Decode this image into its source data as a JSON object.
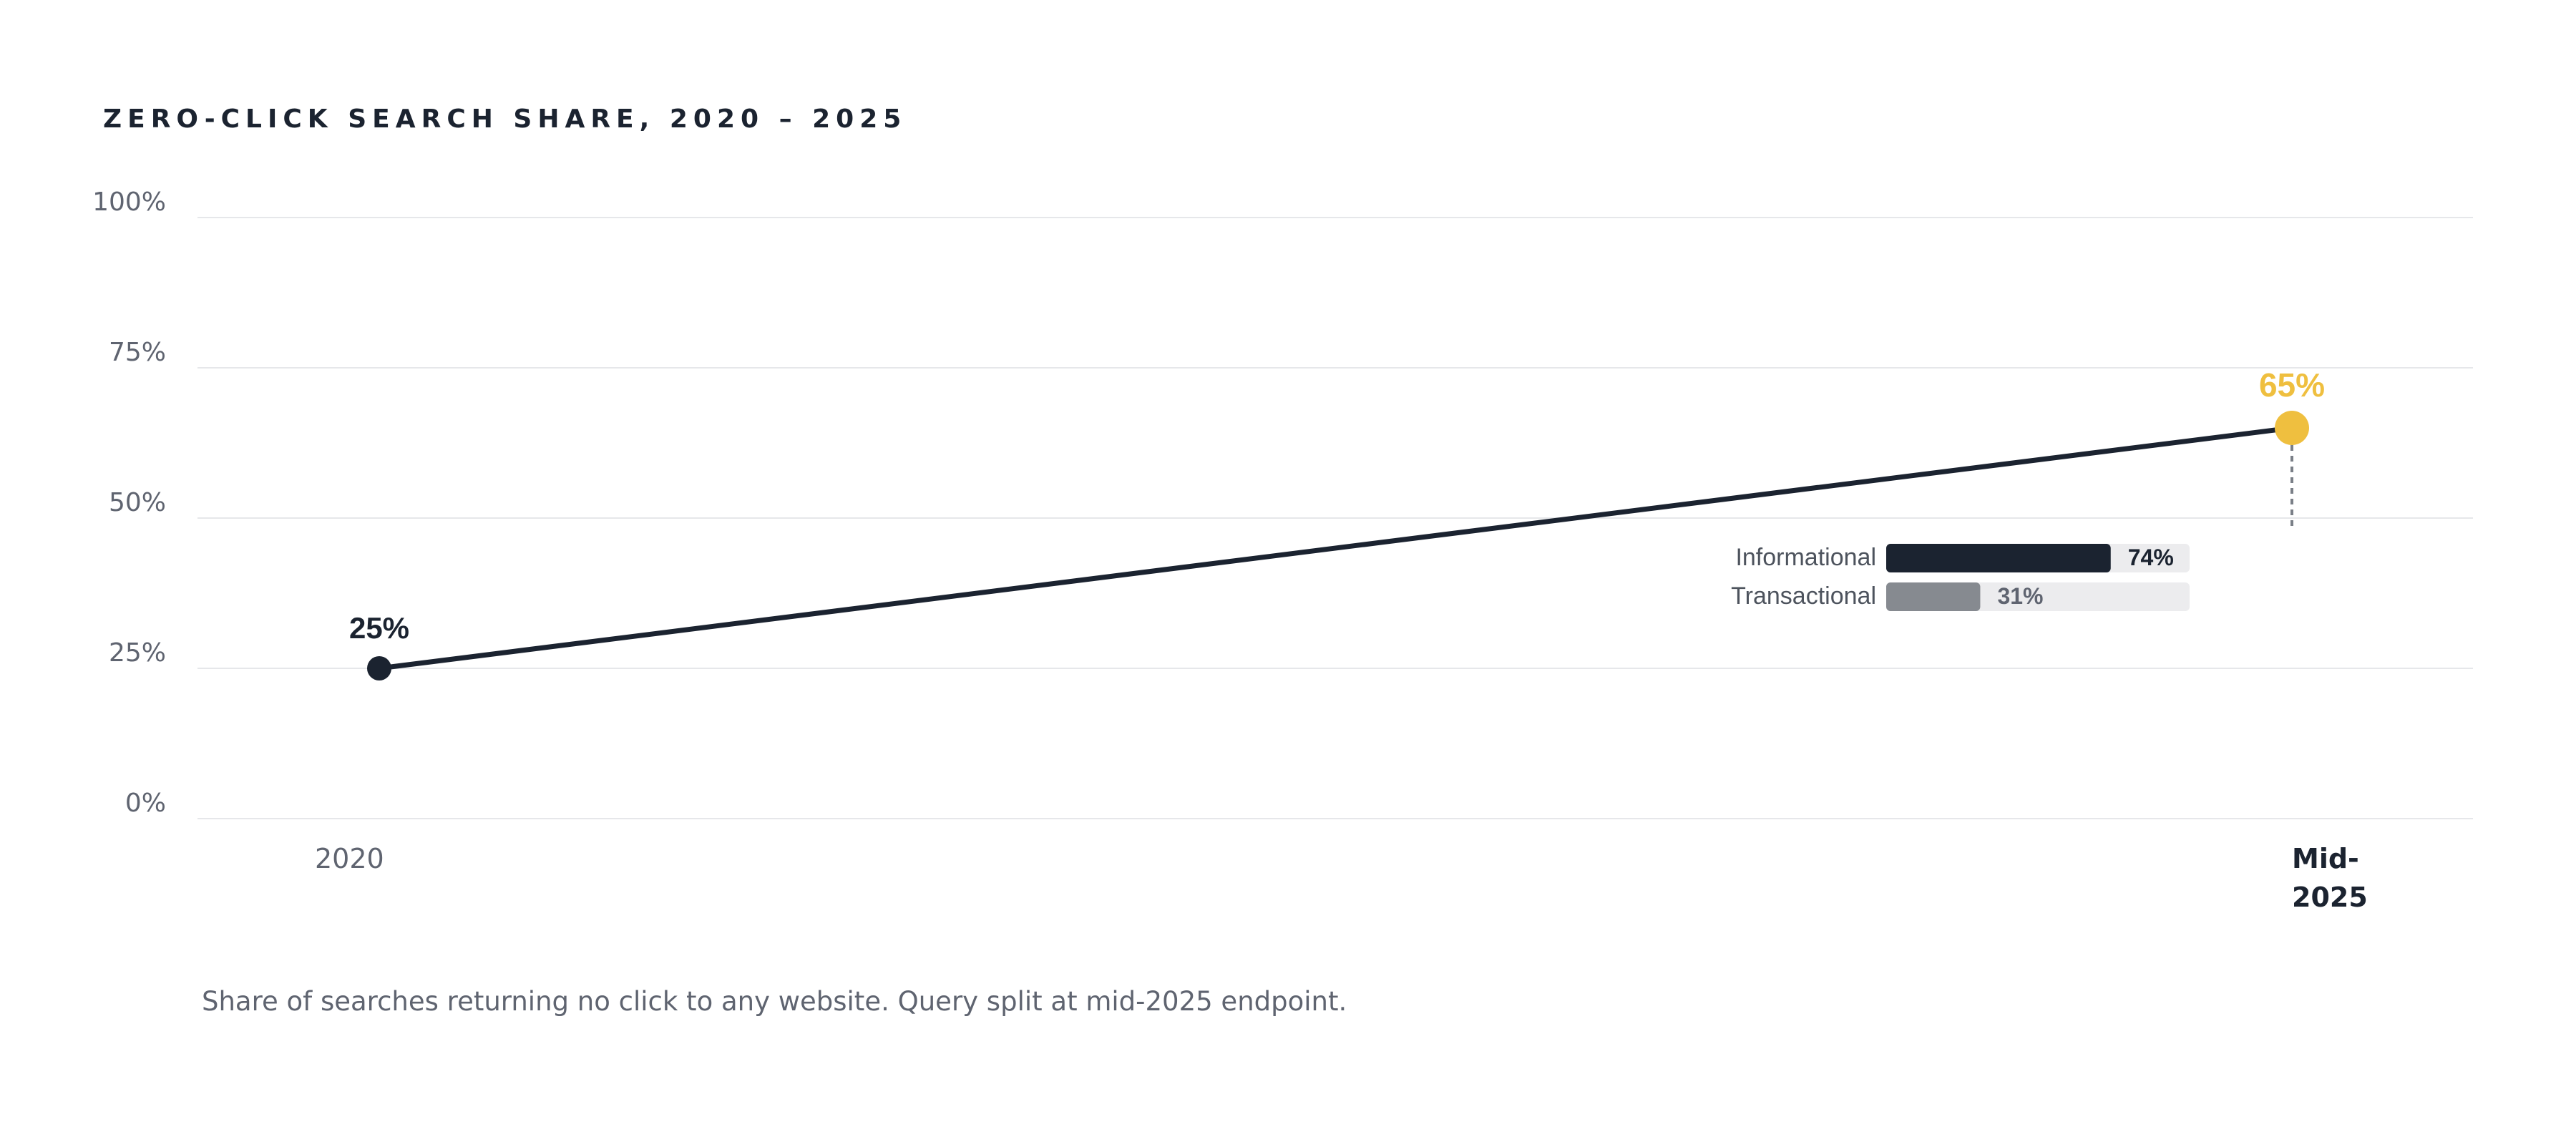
{
  "chart_data": {
    "type": "line",
    "title": "ZERO-CLICK SEARCH SHARE, 2020 – 2025",
    "ylim": [
      0,
      100
    ],
    "yticks": [
      0,
      25,
      50,
      75,
      100
    ],
    "ytick_labels": [
      "0%",
      "25%",
      "50%",
      "75%",
      "100%"
    ],
    "x": [
      "2020",
      "Mid-2025"
    ],
    "xtick_labels": [
      [
        "2020"
      ],
      [
        "Mid-",
        "2025"
      ]
    ],
    "series": [
      {
        "values": [
          25,
          65
        ],
        "data_labels": [
          "25%",
          "65%"
        ]
      }
    ],
    "grid": true,
    "legend": "none",
    "split": {
      "at": "Mid-2025",
      "items": [
        {
          "label": "Informational",
          "value": 74,
          "value_label": "74%"
        },
        {
          "label": "Transactional",
          "value": 31,
          "value_label": "31%"
        }
      ]
    },
    "footnote": "Share of searches returning no click to any website. Query split at mid-2025 endpoint."
  },
  "colors": {
    "line": "#1b2330",
    "start_point": "#1b2330",
    "end_point": "#efbf3f",
    "grid": "#e6e7ea",
    "split_primary": "#1b2330",
    "split_secondary": "#868a90",
    "split_track": "#ececee"
  }
}
